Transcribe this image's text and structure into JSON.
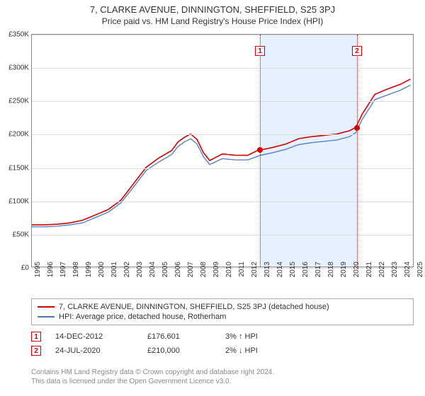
{
  "title": "7, CLARKE AVENUE, DINNINGTON, SHEFFIELD, S25 3PJ",
  "subtitle": "Price paid vs. HM Land Registry's House Price Index (HPI)",
  "chart": {
    "type": "line",
    "background_color": "#ffffff",
    "grid_color": "#dddddd",
    "border_color": "#888888",
    "band_color": "#e6f0ff",
    "xlim": [
      1995,
      2025
    ],
    "ylim": [
      0,
      350000
    ],
    "ytick_step": 50000,
    "yticks": [
      "£0",
      "£50K",
      "£100K",
      "£150K",
      "£200K",
      "£250K",
      "£300K",
      "£350K"
    ],
    "xticks": [
      "1995",
      "1996",
      "1997",
      "1998",
      "1999",
      "2000",
      "2001",
      "2002",
      "2003",
      "2004",
      "2005",
      "2006",
      "2007",
      "2008",
      "2009",
      "2010",
      "2011",
      "2012",
      "2013",
      "2014",
      "2015",
      "2016",
      "2017",
      "2018",
      "2019",
      "2020",
      "2021",
      "2022",
      "2023",
      "2024",
      "2025"
    ],
    "series": [
      {
        "name": "property",
        "label": "7, CLARKE AVENUE, DINNINGTON, SHEFFIELD, S25 3PJ (detached house)",
        "color": "#d40000",
        "line_width": 1.6,
        "years": [
          1995,
          1996,
          1997,
          1998,
          1999,
          2000,
          2001,
          2002,
          2003,
          2004,
          2005,
          2006,
          2006.5,
          2007,
          2007.5,
          2008,
          2008.5,
          2009,
          2010,
          2011,
          2012,
          2012.9,
          2013,
          2014,
          2015,
          2016,
          2017,
          2018,
          2019,
          2020,
          2020.5,
          2021,
          2022,
          2023,
          2024,
          2024.8
        ],
        "values": [
          63000,
          63000,
          64000,
          66000,
          70000,
          78000,
          86000,
          100000,
          125000,
          150000,
          164000,
          175000,
          188000,
          195000,
          200000,
          192000,
          172000,
          160000,
          170000,
          168000,
          168000,
          176601,
          176000,
          180000,
          185000,
          193000,
          196000,
          198000,
          200000,
          205000,
          210000,
          230000,
          260000,
          268000,
          275000,
          283000
        ]
      },
      {
        "name": "hpi",
        "label": "HPI: Average price, detached house, Rotherham",
        "color": "#4a78c4",
        "line_width": 1.3,
        "years": [
          1995,
          1996,
          1997,
          1998,
          1999,
          2000,
          2001,
          2002,
          2003,
          2004,
          2005,
          2006,
          2006.5,
          2007,
          2007.5,
          2008,
          2008.5,
          2009,
          2010,
          2011,
          2012,
          2013,
          2014,
          2015,
          2016,
          2017,
          2018,
          2019,
          2020,
          2020.5,
          2021,
          2022,
          2023,
          2024,
          2024.8
        ],
        "values": [
          60000,
          60000,
          61000,
          63000,
          66000,
          74000,
          82000,
          96000,
          120000,
          145000,
          158000,
          169000,
          181000,
          188000,
          193000,
          185000,
          166000,
          154000,
          163000,
          161000,
          161000,
          168000,
          172000,
          177000,
          184000,
          187000,
          189000,
          191000,
          196000,
          202000,
          222000,
          252000,
          259000,
          266000,
          274000
        ]
      }
    ],
    "band": {
      "start_year": 2012.9,
      "end_year": 2020.5
    },
    "markers": [
      {
        "id": "1",
        "year": 2012.9,
        "value": 176601
      },
      {
        "id": "2",
        "year": 2020.5,
        "value": 210000
      }
    ]
  },
  "legend": {
    "items": [
      {
        "color": "#d40000",
        "label": "7, CLARKE AVENUE, DINNINGTON, SHEFFIELD, S25 3PJ (detached house)"
      },
      {
        "color": "#4a78c4",
        "label": "HPI: Average price, detached house, Rotherham"
      }
    ]
  },
  "transactions": [
    {
      "id": "1",
      "date": "14-DEC-2012",
      "price": "£176,601",
      "diff": "3% ↑ HPI"
    },
    {
      "id": "2",
      "date": "24-JUL-2020",
      "price": "£210,000",
      "diff": "2% ↓ HPI"
    }
  ],
  "footnote_line1": "Contains HM Land Registry data © Crown copyright and database right 2024.",
  "footnote_line2": "This data is licensed under the Open Government Licence v3.0."
}
